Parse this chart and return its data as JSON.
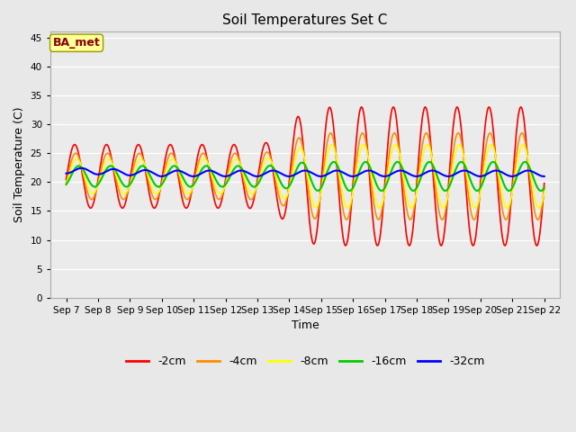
{
  "title": "Soil Temperatures Set C",
  "xlabel": "Time",
  "ylabel": "Soil Temperature (C)",
  "ylim": [
    0,
    46
  ],
  "yticks": [
    0,
    5,
    10,
    15,
    20,
    25,
    30,
    35,
    40,
    45
  ],
  "annotation": "BA_met",
  "annotation_color": "#8B0000",
  "annotation_bg": "#FFFF99",
  "annotation_border": "#999900",
  "fig_bg": "#E8E8E8",
  "plot_bg": "#EBEBEB",
  "colors": {
    "-2cm": "#FF0000",
    "-4cm": "#FF8C00",
    "-8cm": "#FFFF00",
    "-16cm": "#00CC00",
    "-32cm": "#0000FF"
  },
  "legend_labels": [
    "-2cm",
    "-4cm",
    "-8cm",
    "-16cm",
    "-32cm"
  ]
}
